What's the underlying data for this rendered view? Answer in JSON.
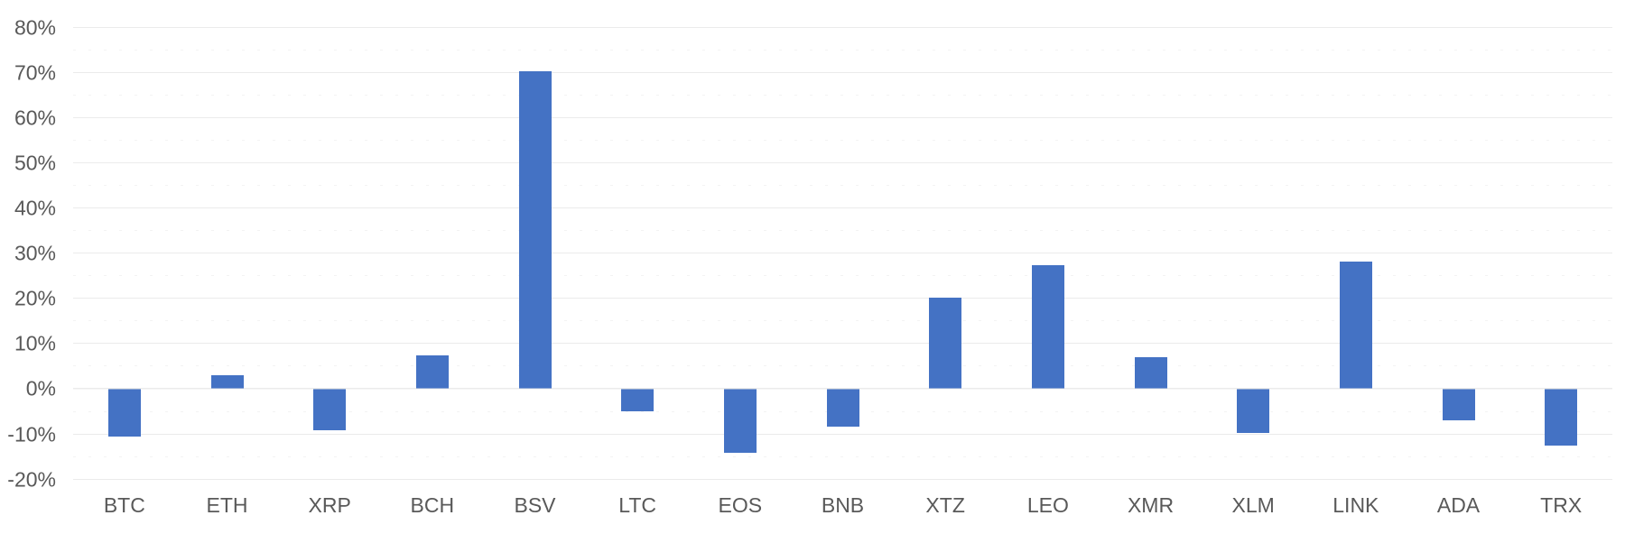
{
  "chart_data": {
    "type": "bar",
    "title": "",
    "xlabel": "",
    "ylabel": "",
    "unit": "%",
    "categories": [
      "BTC",
      "ETH",
      "XRP",
      "BCH",
      "BSV",
      "LTC",
      "EOS",
      "BNB",
      "XTZ",
      "LEO",
      "XMR",
      "XLM",
      "LINK",
      "ADA",
      "TRX"
    ],
    "values": [
      -10.5,
      3.0,
      -9.2,
      7.4,
      70.2,
      -4.9,
      -14.1,
      -8.4,
      20.2,
      27.4,
      7.0,
      -9.7,
      28.1,
      -6.9,
      -12.5
    ],
    "ylim": [
      -20,
      80
    ],
    "ytick_step": 10,
    "yticks": [
      80,
      70,
      60,
      50,
      40,
      30,
      20,
      10,
      0,
      -10,
      -20
    ],
    "ytick_labels": [
      "80%",
      "70%",
      "60%",
      "50%",
      "40%",
      "30%",
      "20%",
      "10%",
      "0%",
      "-10%",
      "-20%"
    ],
    "minor_yticks": [
      75,
      65,
      55,
      45,
      35,
      25,
      15,
      5,
      -5,
      -15
    ],
    "grid": true,
    "legend": "none",
    "colors": {
      "bar": "#4472C4",
      "gridline": "#ebebeb",
      "minor_gridline": "#f3f3f3",
      "axis_label": "#595959",
      "background": "#ffffff"
    }
  }
}
